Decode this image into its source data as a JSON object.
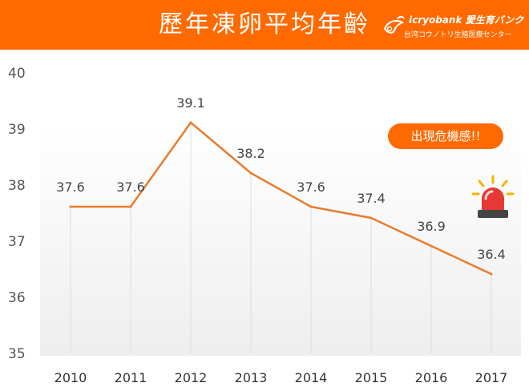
{
  "header": {
    "title": "歷年凍卵平均年齡",
    "brand_name": "icryobank 愛生育バンク",
    "brand_sub": "台湾コウノトリ生殖医療センター"
  },
  "alert": {
    "label": "出現危機感!!",
    "icon": "siren-icon"
  },
  "colors": {
    "accent": "#ff6a00",
    "line": "#e87c2c",
    "plot_bg": "#f5f5f5"
  },
  "chart_data": {
    "type": "line",
    "title": "歷年凍卵平均年齡",
    "xlabel": "",
    "ylabel": "",
    "categories": [
      "2010",
      "2011",
      "2012",
      "2013",
      "2014",
      "2015",
      "2016",
      "2017"
    ],
    "series": [
      {
        "values": [
          37.6,
          37.6,
          39.1,
          38.2,
          37.6,
          37.4,
          36.9,
          36.4
        ]
      }
    ],
    "data_labels": [
      "37.6",
      "37.6",
      "39.1",
      "38.2",
      "37.6",
      "37.4",
      "36.9",
      "36.4"
    ],
    "ylim": [
      35,
      40
    ],
    "yticks": [
      "35",
      "36",
      "37",
      "38",
      "39",
      "40"
    ],
    "grid": "vertical drop lines per category"
  }
}
